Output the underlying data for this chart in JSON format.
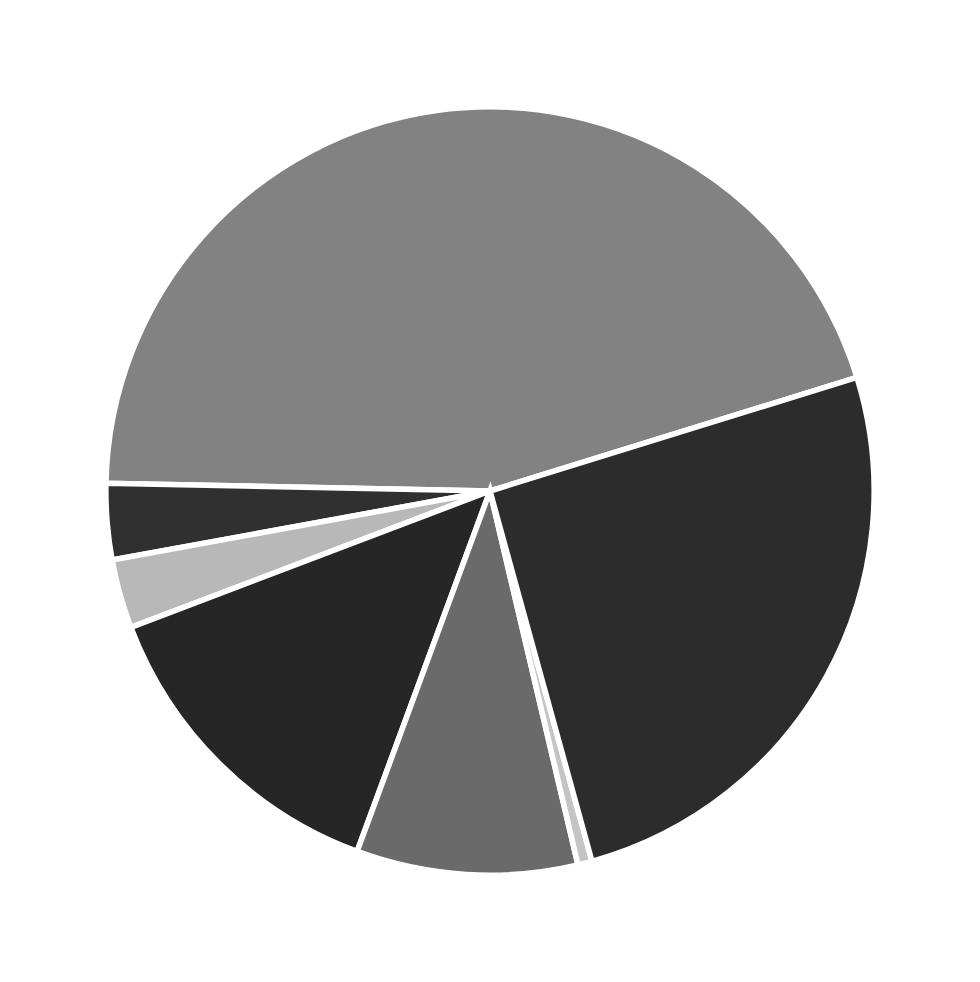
{
  "chart_data": {
    "type": "pie",
    "categories": [
      null,
      null,
      null,
      null,
      null,
      null,
      null
    ],
    "values": [
      44.9,
      3.2,
      2.9,
      13.6,
      9.3,
      0.6,
      25.5
    ],
    "colors": [
      "#828282",
      "#303030",
      "#b8b8b8",
      "#262626",
      "#6a6a6a",
      "#c4c4c4",
      "#2c2c2c"
    ]
  }
}
